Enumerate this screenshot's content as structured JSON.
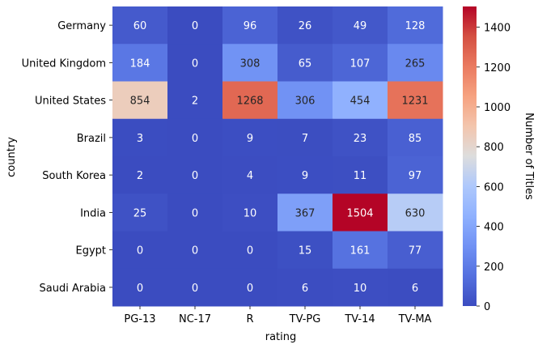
{
  "chart_data": {
    "type": "heatmap",
    "xlabel": "rating",
    "ylabel": "country",
    "x_categories": [
      "PG-13",
      "NC-17",
      "R",
      "TV-PG",
      "TV-14",
      "TV-MA"
    ],
    "y_categories": [
      "Germany",
      "United Kingdom",
      "United States",
      "Brazil",
      "South Korea",
      "India",
      "Egypt",
      "Saudi Arabia"
    ],
    "values": [
      [
        60,
        0,
        96,
        26,
        49,
        128
      ],
      [
        184,
        0,
        308,
        65,
        107,
        265
      ],
      [
        854,
        2,
        1268,
        306,
        454,
        1231
      ],
      [
        3,
        0,
        9,
        7,
        23,
        85
      ],
      [
        2,
        0,
        4,
        9,
        11,
        97
      ],
      [
        25,
        0,
        10,
        367,
        1504,
        630
      ],
      [
        0,
        0,
        0,
        15,
        161,
        77
      ],
      [
        0,
        0,
        0,
        6,
        10,
        6
      ]
    ],
    "colormap": "coolwarm",
    "vmin": 0,
    "vmax": 1504,
    "colorbar": {
      "label": "Number of Titles",
      "ticks": [
        0,
        200,
        400,
        600,
        800,
        1000,
        1200,
        1400
      ]
    },
    "annotations": true,
    "grid": false
  }
}
